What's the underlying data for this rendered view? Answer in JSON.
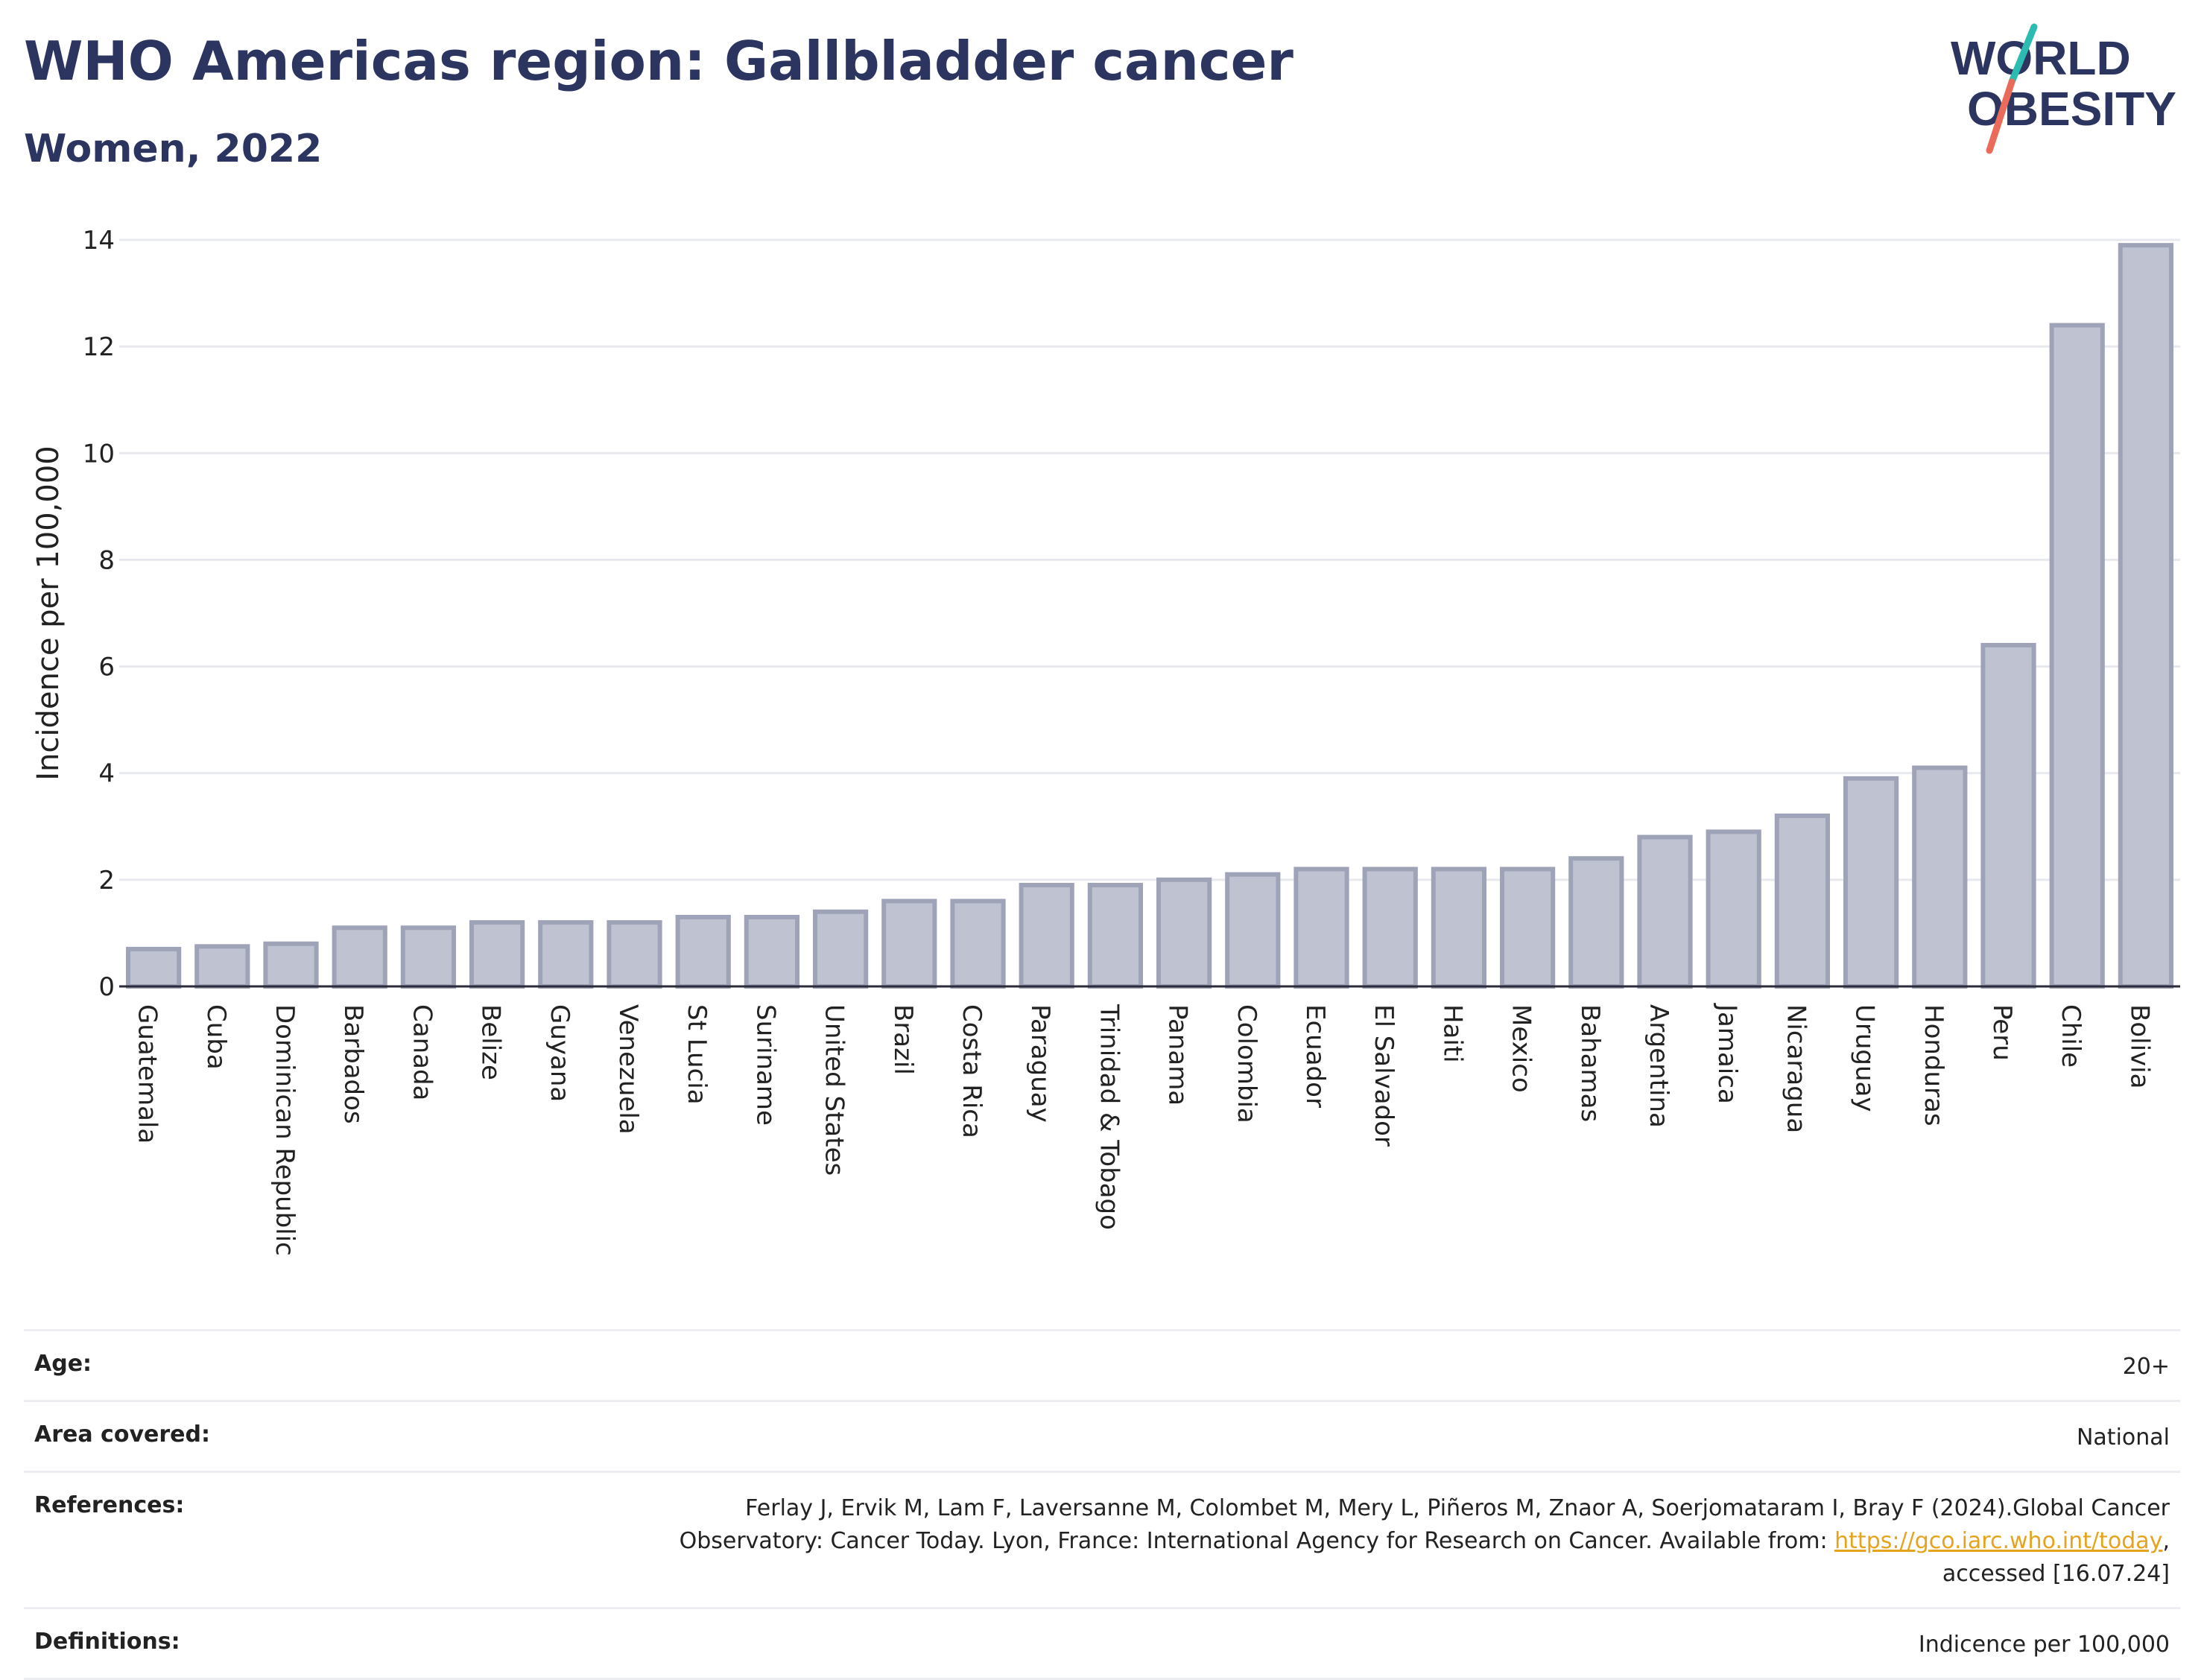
{
  "header": {
    "title": "WHO Americas region: Gallbladder cancer",
    "subtitle": "Women, 2022"
  },
  "logo": {
    "line1": "WORLD",
    "line2": "OBESITY",
    "colors": {
      "text": "#2b3560",
      "slash_top": "#2bbbb0",
      "slash_bottom": "#ea6b5a"
    }
  },
  "chart_data": {
    "type": "bar",
    "title": "WHO Americas region: Gallbladder cancer",
    "subtitle": "Women, 2022",
    "xlabel": "",
    "ylabel": "Incidence per 100,000",
    "ylim": [
      0,
      14
    ],
    "yticks": [
      0,
      2,
      4,
      6,
      8,
      10,
      12,
      14
    ],
    "grid": true,
    "bar_color": "#bfc3d1",
    "bar_edge_color": "#9ea3b8",
    "categories": [
      "Guatemala",
      "Cuba",
      "Dominican Republic",
      "Barbados",
      "Canada",
      "Belize",
      "Guyana",
      "Venezuela",
      "St Lucia",
      "Suriname",
      "United States",
      "Brazil",
      "Costa Rica",
      "Paraguay",
      "Trinidad & Tobago",
      "Panama",
      "Colombia",
      "Ecuador",
      "El Salvador",
      "Haiti",
      "Mexico",
      "Bahamas",
      "Argentina",
      "Jamaica",
      "Nicaragua",
      "Uruguay",
      "Honduras",
      "Peru",
      "Chile",
      "Bolivia"
    ],
    "values": [
      0.7,
      0.75,
      0.8,
      1.1,
      1.1,
      1.2,
      1.2,
      1.2,
      1.3,
      1.3,
      1.4,
      1.6,
      1.6,
      1.9,
      1.9,
      2.0,
      2.1,
      2.2,
      2.2,
      2.2,
      2.2,
      2.4,
      2.8,
      2.9,
      3.2,
      3.9,
      4.1,
      6.4,
      12.4,
      13.9
    ]
  },
  "meta": {
    "age_label": "Age:",
    "age_value": "20+",
    "area_label": "Area covered:",
    "area_value": "National",
    "references_label": "References:",
    "references_line1": "Ferlay J, Ervik M, Lam F, Laversanne M, Colombet M, Mery L, Piñeros M, Znaor A, Soerjomataram I, Bray F (2024).Global Cancer",
    "references_line2_pre": "Observatory: Cancer Today. Lyon, France: International Agency for Research on Cancer. Available from: ",
    "references_link": "https://gco.iarc.who.int/today",
    "references_line2_post": ",",
    "references_line3": "accessed [16.07.24]",
    "definitions_label": "Definitions:",
    "definitions_value": "Indicence per 100,000"
  }
}
